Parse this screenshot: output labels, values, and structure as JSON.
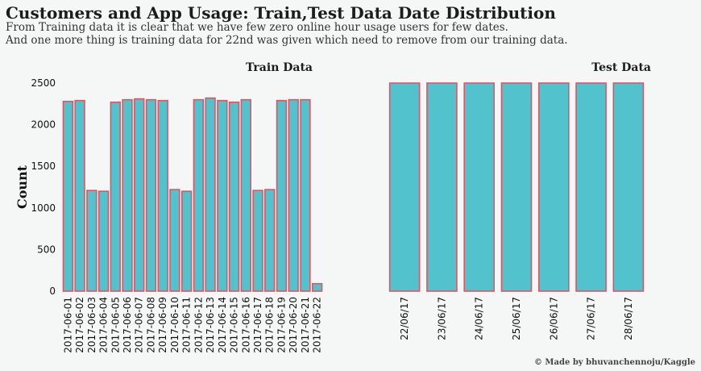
{
  "header": {
    "title": "Customers and App Usage: Train,Test Data Date Distribution",
    "subtitle_line1": "From Training data it is clear that we have few zero online hour usage users for few dates.",
    "subtitle_line2": "And one more thing is training data for 22nd was given which need to remove from our training data.",
    "credit": "© Made by bhuvanchennoju/Kaggle"
  },
  "colors": {
    "bar_fill": "#52c2cc",
    "bar_edge": "#e05565",
    "background": "#f5f6f6"
  },
  "chart_data": [
    {
      "type": "bar",
      "title": "Train Data",
      "ylabel": "Count",
      "ylim": [
        0,
        2500
      ],
      "yticks": [
        0,
        500,
        1000,
        1500,
        2000,
        2500
      ],
      "grid": false,
      "categories": [
        "2017-06-01",
        "2017-06-02",
        "2017-06-03",
        "2017-06-04",
        "2017-06-05",
        "2017-06-06",
        "2017-06-07",
        "2017-06-08",
        "2017-06-09",
        "2017-06-10",
        "2017-06-11",
        "2017-06-12",
        "2017-06-13",
        "2017-06-14",
        "2017-06-15",
        "2017-06-16",
        "2017-06-17",
        "2017-06-18",
        "2017-06-19",
        "2017-06-20",
        "2017-06-21",
        "2017-06-22"
      ],
      "values": [
        2280,
        2290,
        1210,
        1200,
        2270,
        2300,
        2310,
        2300,
        2290,
        1220,
        1200,
        2300,
        2320,
        2290,
        2270,
        2300,
        1210,
        1220,
        2290,
        2300,
        2300,
        90
      ]
    },
    {
      "type": "bar",
      "title": "Test Data",
      "ylim": [
        0,
        2500
      ],
      "grid": false,
      "categories": [
        "22/06/17",
        "23/06/17",
        "24/06/17",
        "25/06/17",
        "26/06/17",
        "27/06/17",
        "28/06/17"
      ],
      "values": [
        2500,
        2500,
        2500,
        2500,
        2500,
        2500,
        2500
      ]
    }
  ]
}
